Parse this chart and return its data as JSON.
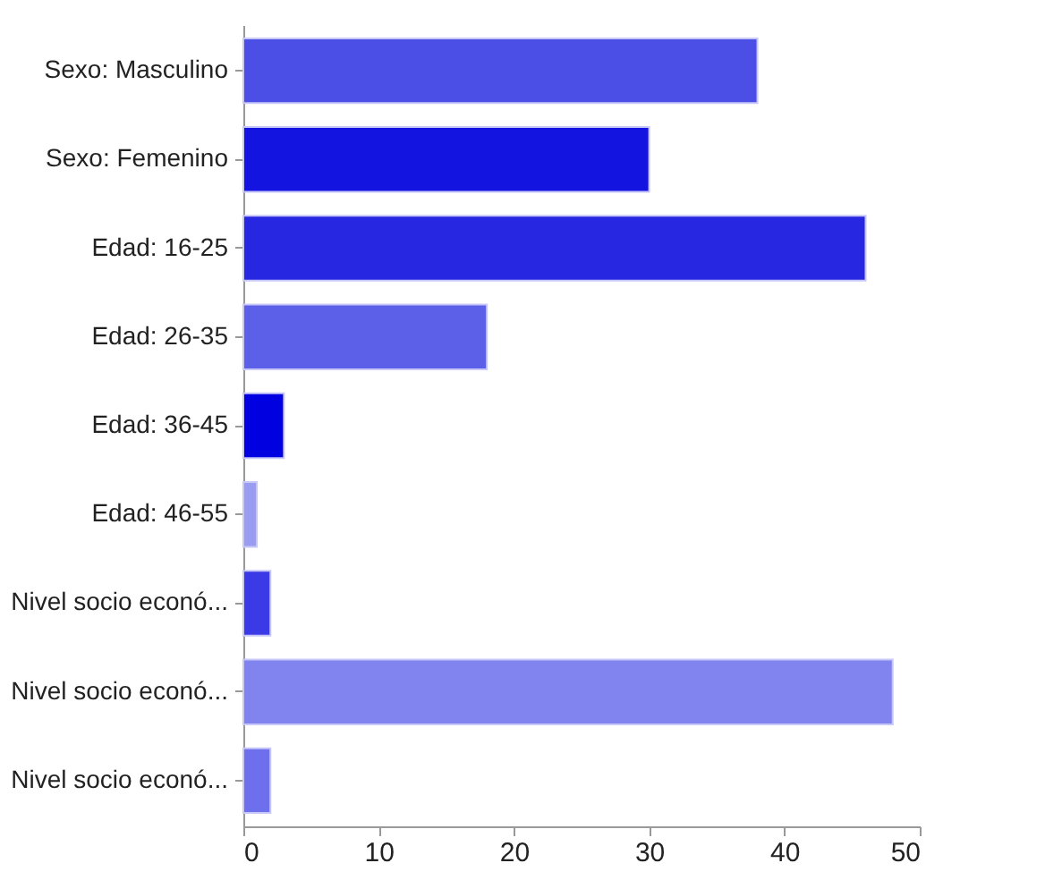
{
  "chart_data": {
    "type": "bar",
    "orientation": "horizontal",
    "categories": [
      "Sexo: Masculino",
      "Sexo: Femenino",
      "Edad: 16-25",
      "Edad: 26-35",
      "Edad: 36-45",
      "Edad: 46-55",
      "Nivel socio econó...",
      "Nivel socio econó...",
      "Nivel socio econó..."
    ],
    "values": [
      38,
      30,
      46,
      18,
      3,
      1,
      2,
      48,
      2
    ],
    "colors": [
      "#4b4fe6",
      "#1414e0",
      "#2727e2",
      "#5c5fe8",
      "#0000e0",
      "#9a9cf2",
      "#3a3ae6",
      "#8183ee",
      "#6d6fec"
    ],
    "xlim": [
      0,
      50
    ],
    "xticks": [
      0,
      10,
      20,
      30,
      40,
      50
    ],
    "grid": false
  }
}
